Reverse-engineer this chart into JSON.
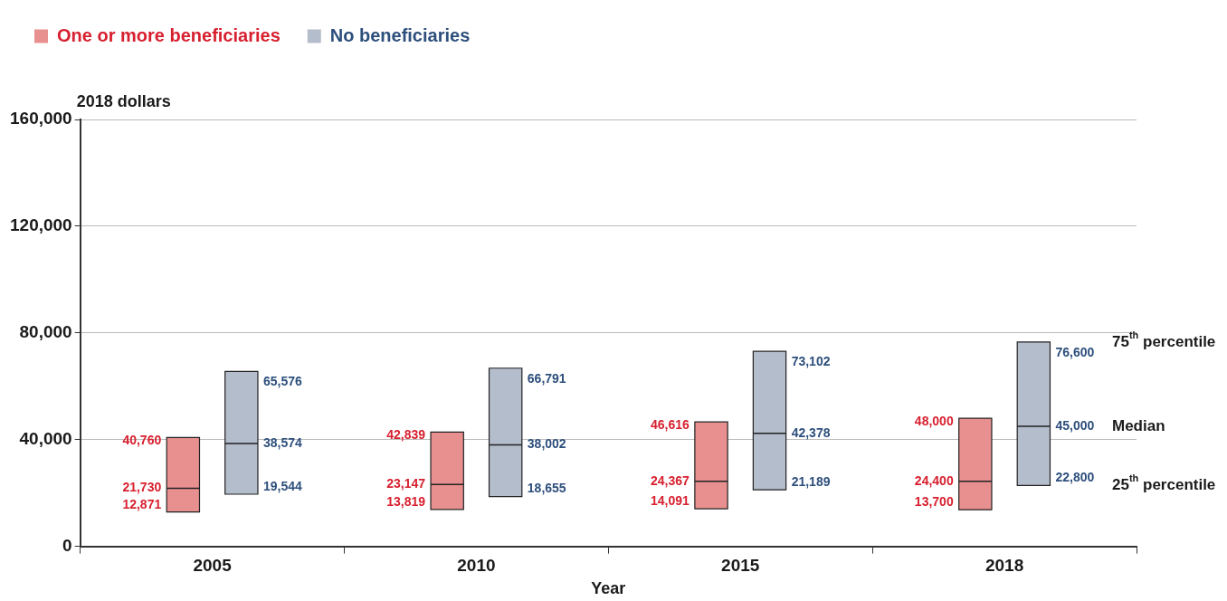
{
  "chart_data": {
    "type": "box",
    "ylabel": "2018 dollars",
    "xlabel": "Year",
    "categories": [
      "2005",
      "2010",
      "2015",
      "2018"
    ],
    "series": [
      {
        "name": "One or more beneficiaries",
        "color": "#e8908f",
        "boxes": [
          {
            "low": 12871,
            "q1": 12871,
            "median": 21730,
            "q3": 40760,
            "high": 40760
          },
          {
            "low": 13819,
            "q1": 13819,
            "median": 23147,
            "q3": 42839,
            "high": 42839
          },
          {
            "low": 14091,
            "q1": 14091,
            "median": 24367,
            "q3": 46616,
            "high": 46616
          },
          {
            "low": 13700,
            "q1": 13700,
            "median": 24400,
            "q3": 48000,
            "high": 48000
          }
        ],
        "value_labels": [
          [
            "40,760",
            "21,730",
            "12,871"
          ],
          [
            "42,839",
            "23,147",
            "13,819"
          ],
          [
            "46,616",
            "24,367",
            "14,091"
          ],
          [
            "48,000",
            "24,400",
            "13,700"
          ]
        ]
      },
      {
        "name": "No beneficiaries",
        "color": "#b4bdcc",
        "boxes": [
          {
            "low": 19544,
            "q1": 19544,
            "median": 38574,
            "q3": 65576,
            "high": 65576
          },
          {
            "low": 18655,
            "q1": 18655,
            "median": 38002,
            "q3": 66791,
            "high": 66791
          },
          {
            "low": 21189,
            "q1": 21189,
            "median": 42378,
            "q3": 73102,
            "high": 73102
          },
          {
            "low": 22800,
            "q1": 22800,
            "median": 45000,
            "q3": 76600,
            "high": 76600
          }
        ],
        "value_labels": [
          [
            "65,576",
            "38,574",
            "19,544"
          ],
          [
            "66,791",
            "38,002",
            "18,655"
          ],
          [
            "73,102",
            "42,378",
            "21,189"
          ],
          [
            "76,600",
            "45,000",
            "22,800"
          ]
        ]
      }
    ],
    "ylim": [
      0,
      160000
    ],
    "yticks": [
      {
        "value": 0,
        "label": "0"
      },
      {
        "value": 40000,
        "label": "40,000"
      },
      {
        "value": 80000,
        "label": "80,000"
      },
      {
        "value": 120000,
        "label": "120,000"
      },
      {
        "value": 160000,
        "label": "160,000"
      }
    ],
    "grid": "y",
    "legend": "top left",
    "annotations": [
      "75$^{th}$ percentile",
      "Median",
      "25$^{th}$ percentile"
    ]
  }
}
